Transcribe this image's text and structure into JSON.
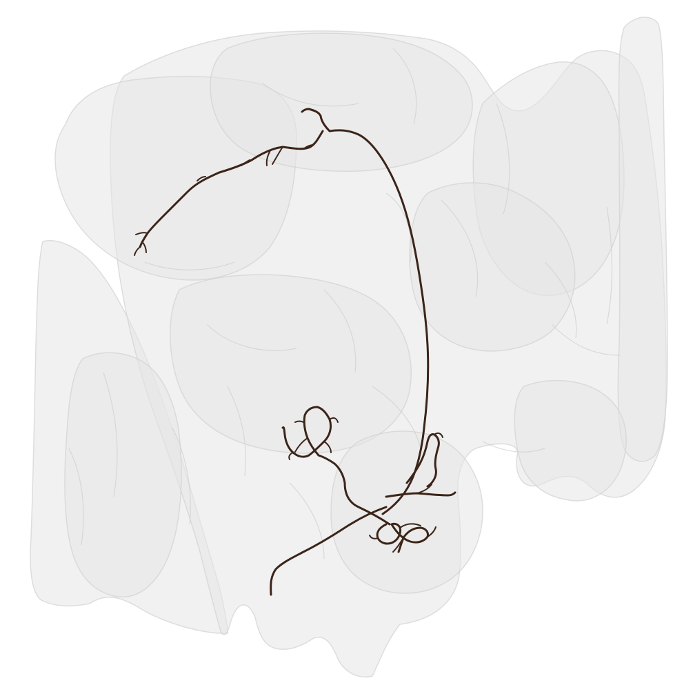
{
  "scene": {
    "background_color": "#ffffff",
    "mesh_fill_color": "#e6e6e6",
    "mesh_edge_color": "#d2d2d2",
    "neuron_color": "#3b2419"
  }
}
